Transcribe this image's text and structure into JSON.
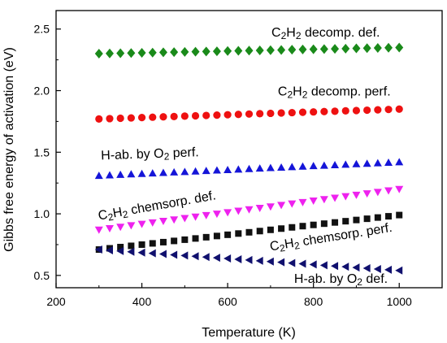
{
  "chart_data": {
    "type": "scatter",
    "xlabel": "Temperature (K)",
    "ylabel": "Gibbs free energy of activation (eV)",
    "xlim": [
      200,
      1100
    ],
    "ylim": [
      0.4,
      2.65
    ],
    "xticks": [
      "200",
      "400",
      "600",
      "800",
      "1000"
    ],
    "yticks": [
      "0.5",
      "1.0",
      "1.5",
      "2.0",
      "2.5"
    ],
    "x": [
      300,
      325,
      350,
      375,
      400,
      425,
      450,
      475,
      500,
      525,
      550,
      575,
      600,
      625,
      650,
      675,
      700,
      725,
      750,
      775,
      800,
      825,
      850,
      875,
      900,
      925,
      950,
      975,
      1000
    ],
    "series": [
      {
        "id": "c2h2_decomp_def",
        "marker": "diamond",
        "color": "#1a8a1a",
        "y_start": 2.3,
        "y_end": 2.35
      },
      {
        "id": "c2h2_decomp_perf",
        "marker": "circle",
        "color": "#ee1111",
        "y_start": 1.77,
        "y_end": 1.85
      },
      {
        "id": "h_ab_o2_perf",
        "marker": "triangle-up",
        "color": "#1515d8",
        "y_start": 1.31,
        "y_end": 1.42
      },
      {
        "id": "c2h2_chemsorp_def",
        "marker": "triangle-down",
        "color": "#ee22ee",
        "y_start": 0.87,
        "y_end": 1.2
      },
      {
        "id": "c2h2_chemsorp_perf",
        "marker": "square",
        "color": "#111111",
        "y_start": 0.71,
        "y_end": 0.99
      },
      {
        "id": "h_ab_o2_def",
        "marker": "triangle-left",
        "color": "#10106e",
        "y_start": 0.71,
        "y_end": 0.54
      }
    ],
    "annotations": [
      {
        "id": "ann_decomp_def",
        "parts": [
          [
            "C",
            false
          ],
          [
            "2",
            true
          ],
          [
            "H",
            false
          ],
          [
            "2",
            true
          ],
          [
            " decomp. def.",
            false
          ]
        ],
        "x": 955,
        "y": 2.44,
        "anchor": "end",
        "rotate": 0
      },
      {
        "id": "ann_decomp_perf",
        "parts": [
          [
            "C",
            false
          ],
          [
            "2",
            true
          ],
          [
            "H",
            false
          ],
          [
            "2",
            true
          ],
          [
            " decomp. perf.",
            false
          ]
        ],
        "x": 980,
        "y": 1.96,
        "anchor": "end",
        "rotate": 0
      },
      {
        "id": "ann_hab_perf",
        "parts": [
          [
            "H-ab. by O",
            false
          ],
          [
            "2",
            true
          ],
          [
            " perf.",
            false
          ]
        ],
        "x": 305,
        "y": 1.44,
        "anchor": "start",
        "rotate": -2
      },
      {
        "id": "ann_chemsorp_def",
        "parts": [
          [
            "C",
            false
          ],
          [
            "2",
            true
          ],
          [
            "H",
            false
          ],
          [
            "2",
            true
          ],
          [
            " chemsorp. def.",
            false
          ]
        ],
        "x": 300,
        "y": 0.95,
        "anchor": "start",
        "rotate": -10
      },
      {
        "id": "ann_chemsorp_perf",
        "parts": [
          [
            "C",
            false
          ],
          [
            "2",
            true
          ],
          [
            "H",
            false
          ],
          [
            "2",
            true
          ],
          [
            " chemsorp. perf.",
            false
          ]
        ],
        "x": 700,
        "y": 0.7,
        "anchor": "start",
        "rotate": -9
      },
      {
        "id": "ann_hab_def",
        "parts": [
          [
            "H-ab. by O",
            false
          ],
          [
            "2",
            true
          ],
          [
            " def.",
            false
          ]
        ],
        "x": 755,
        "y": 0.44,
        "anchor": "start",
        "rotate": 0
      }
    ]
  }
}
